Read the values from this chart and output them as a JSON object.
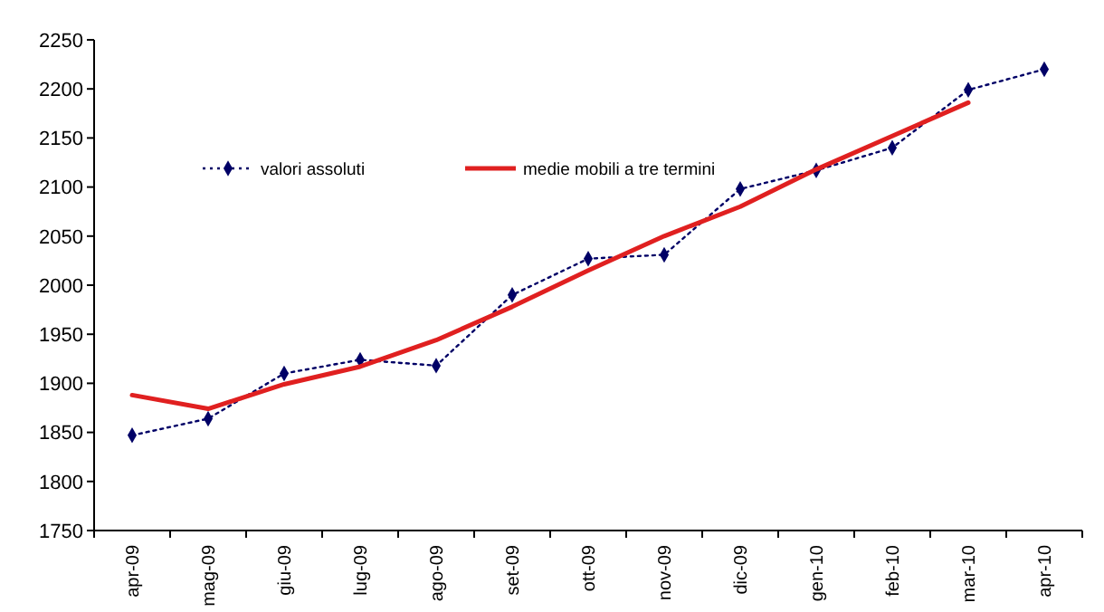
{
  "chart_data": {
    "type": "line",
    "categories": [
      "apr-09",
      "mag-09",
      "giu-09",
      "lug-09",
      "ago-09",
      "set-09",
      "ott-09",
      "nov-09",
      "dic-09",
      "gen-10",
      "feb-10",
      "mar-10",
      "apr-10"
    ],
    "series": [
      {
        "name": "valori assoluti",
        "color": "#000066",
        "line_style": "dotted",
        "marker": "diamond",
        "values": [
          1847,
          1864,
          1910,
          1924,
          1918,
          1990,
          2027,
          2031,
          2098,
          2117,
          2140,
          2199,
          2220
        ]
      },
      {
        "name": "medie mobili a tre termini",
        "color": "#e02020",
        "line_style": "solid",
        "marker": "none",
        "values": [
          1888,
          1874,
          1899,
          1917,
          1944,
          1978,
          2015,
          2050,
          2080,
          2118,
          2152,
          2186,
          null
        ]
      }
    ],
    "ylim": [
      1750,
      2250
    ],
    "yticks": [
      1750,
      1800,
      1850,
      1900,
      1950,
      2000,
      2050,
      2100,
      2150,
      2200,
      2250
    ],
    "grid": false,
    "legend": "top left"
  }
}
